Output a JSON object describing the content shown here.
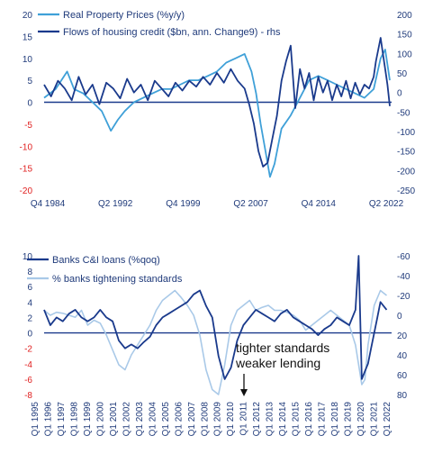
{
  "colors": {
    "navy": "#1a3a8c",
    "lightblue": "#3fa0d8",
    "paleblue": "#a9c9e8",
    "axis_text": "#1f3a7a",
    "negative": "#e02020"
  },
  "chart_data": [
    {
      "type": "line",
      "title": "",
      "legend_position": "top-left",
      "grid": false,
      "x_ticks": [
        "Q4 1984",
        "Q2 1992",
        "Q4 1999",
        "Q2 2007",
        "Q4 2014",
        "Q2 2022"
      ],
      "x_range": [
        1984.75,
        2022.25
      ],
      "y_left": {
        "range": [
          -20,
          20
        ],
        "ticks": [
          20,
          15,
          10,
          5,
          0,
          -5,
          -10,
          -15,
          -20
        ]
      },
      "y_right": {
        "range": [
          -250,
          200
        ],
        "ticks": [
          200,
          150,
          100,
          50,
          0,
          -50,
          -100,
          -150,
          -200,
          -250
        ]
      },
      "series": [
        {
          "name": "Real Property Prices (%y/y)",
          "axis": "left",
          "color": "#3fa0d8",
          "x": [
            1984.75,
            1986,
            1987.25,
            1988,
            1989,
            1990,
            1991,
            1992,
            1992.75,
            1993.5,
            1994.5,
            1995.5,
            1996.5,
            1997.5,
            1998.5,
            1999.5,
            2000.5,
            2001.5,
            2002.5,
            2003.5,
            2004.5,
            2005.5,
            2006.5,
            2007.25,
            2007.75,
            2008.25,
            2008.75,
            2009.25,
            2009.75,
            2010.5,
            2011.5,
            2012.5,
            2013.5,
            2014.5,
            2015.5,
            2016.5,
            2017.5,
            2018.5,
            2019.5,
            2020.5,
            2021.25,
            2021.75,
            2022.25
          ],
          "y": [
            1,
            3,
            7,
            3,
            2,
            0,
            -2,
            -6.5,
            -4,
            -2,
            0,
            1,
            2,
            3,
            3,
            4,
            5,
            5,
            6,
            7,
            9,
            10,
            11,
            7,
            2,
            -5,
            -11,
            -17,
            -14,
            -6,
            -3,
            1,
            5,
            6,
            5,
            4,
            3,
            2,
            1,
            3,
            10,
            12,
            5
          ]
        },
        {
          "name": "Flows of housing credit ($bn, ann. Change9) - rhs",
          "axis": "right",
          "color": "#1a3a8c",
          "x": [
            1984.75,
            1985.5,
            1986.25,
            1987,
            1987.75,
            1988.5,
            1989.25,
            1990,
            1990.75,
            1991.5,
            1992.25,
            1993,
            1993.75,
            1994.5,
            1995.25,
            1996,
            1996.75,
            1997.5,
            1998.25,
            1999,
            1999.75,
            2000.5,
            2001.25,
            2002,
            2002.75,
            2003.5,
            2004.25,
            2005,
            2005.75,
            2006.5,
            2007,
            2007.5,
            2008,
            2008.5,
            2009,
            2009.5,
            2010,
            2010.5,
            2011,
            2011.5,
            2012,
            2012.5,
            2013,
            2013.5,
            2014,
            2014.5,
            2015,
            2015.5,
            2016,
            2016.5,
            2017,
            2017.5,
            2018,
            2018.5,
            2019,
            2019.5,
            2020,
            2020.5,
            2020.75,
            2021,
            2021.25,
            2021.5,
            2021.75,
            2022,
            2022.25
          ],
          "y": [
            20,
            -10,
            30,
            10,
            -20,
            40,
            -5,
            20,
            -30,
            25,
            10,
            -15,
            35,
            0,
            20,
            -20,
            30,
            10,
            -10,
            25,
            5,
            30,
            15,
            40,
            20,
            50,
            25,
            60,
            30,
            10,
            -30,
            -80,
            -150,
            -190,
            -180,
            -120,
            -60,
            30,
            80,
            120,
            -40,
            60,
            10,
            50,
            -20,
            40,
            0,
            30,
            -20,
            20,
            -10,
            30,
            -15,
            25,
            -5,
            20,
            10,
            40,
            80,
            110,
            140,
            100,
            60,
            20,
            -35
          ]
        }
      ]
    },
    {
      "type": "line",
      "title": "",
      "legend_position": "top-left",
      "grid": false,
      "x_ticks": [
        "Q1 1995",
        "Q1 1996",
        "Q1 1997",
        "Q1 1998",
        "Q1 1999",
        "Q1 2000",
        "Q1 2001",
        "Q1 2002",
        "Q1 2003",
        "Q1 2004",
        "Q1 2005",
        "Q1 2006",
        "Q1 2007",
        "Q1 2008",
        "Q1 2009",
        "Q1 2010",
        "Q1 2011",
        "Q1 2012",
        "Q1 2013",
        "Q1 2014",
        "Q1 2015",
        "Q1 2016",
        "Q1 2017",
        "Q1 2018",
        "Q1 2019",
        "Q1 2020",
        "Q1 2021",
        "Q1 2022"
      ],
      "x_range": [
        1995,
        2022.75
      ],
      "y_left": {
        "range": [
          -8,
          10
        ],
        "ticks": [
          10,
          8,
          6,
          4,
          2,
          0,
          -2,
          -4,
          -6,
          -8
        ]
      },
      "y_right": {
        "range": [
          80,
          -60
        ],
        "ticks": [
          -60,
          -40,
          -20,
          0,
          20,
          40,
          60,
          80
        ],
        "inverted": true
      },
      "annotation": {
        "lines": [
          "tighter standards",
          "weaker lending"
        ],
        "arrow": "down"
      },
      "series": [
        {
          "name": "Banks C&I loans (%qoq)",
          "axis": "left",
          "color": "#1a3a8c",
          "x": [
            1995,
            1995.5,
            1996,
            1996.5,
            1997,
            1997.5,
            1998,
            1998.5,
            1999,
            1999.5,
            2000,
            2000.5,
            2001,
            2001.5,
            2002,
            2002.5,
            2003,
            2003.5,
            2004,
            2004.5,
            2005,
            2005.5,
            2006,
            2006.5,
            2007,
            2007.5,
            2008,
            2008.5,
            2009,
            2009.5,
            2010,
            2010.5,
            2011,
            2011.5,
            2012,
            2012.5,
            2013,
            2013.5,
            2014,
            2014.5,
            2015,
            2015.5,
            2016,
            2016.5,
            2017,
            2017.5,
            2018,
            2018.5,
            2019,
            2019.5,
            2020,
            2020.25,
            2020.5,
            2020.75,
            2021,
            2021.25,
            2021.5,
            2021.75,
            2022,
            2022.5
          ],
          "y": [
            3,
            1,
            2,
            1.5,
            2.5,
            3,
            2,
            1.5,
            2,
            3,
            2,
            1.5,
            -1,
            -2,
            -1.5,
            -2,
            -1.2,
            -0.5,
            1,
            2,
            2.5,
            3,
            3.5,
            4,
            5,
            5.5,
            3.5,
            2,
            -3,
            -6,
            -4.5,
            -1,
            1,
            2,
            3,
            2.5,
            2,
            1.5,
            2.5,
            3,
            2,
            1.5,
            1,
            0.5,
            -0.3,
            0.5,
            1,
            2,
            1.5,
            1,
            3,
            10,
            -6,
            -5,
            -4,
            -2,
            0,
            2,
            4,
            3
          ]
        },
        {
          "name": "% banks tightening standards",
          "axis": "right",
          "color": "#a9c9e8",
          "x": [
            1995,
            1995.5,
            1996,
            1996.5,
            1997,
            1997.5,
            1998,
            1998.5,
            1999,
            1999.5,
            2000,
            2000.5,
            2001,
            2001.5,
            2002,
            2002.5,
            2003,
            2003.5,
            2004,
            2004.5,
            2005,
            2005.5,
            2006,
            2006.5,
            2007,
            2007.5,
            2008,
            2008.5,
            2009,
            2009.5,
            2010,
            2010.5,
            2011,
            2011.5,
            2012,
            2012.5,
            2013,
            2013.5,
            2014,
            2014.5,
            2015,
            2015.5,
            2016,
            2016.5,
            2017,
            2017.5,
            2018,
            2018.5,
            2019,
            2019.5,
            2020,
            2020.5,
            2020.75,
            2021,
            2021.5,
            2022,
            2022.5
          ],
          "y": [
            -5,
            0,
            -3,
            -2,
            0,
            2,
            -5,
            10,
            5,
            8,
            20,
            35,
            50,
            55,
            40,
            30,
            20,
            10,
            -5,
            -15,
            -20,
            -25,
            -18,
            -10,
            0,
            20,
            55,
            75,
            80,
            50,
            10,
            -5,
            -10,
            -15,
            -5,
            -8,
            -10,
            -5,
            -5,
            -3,
            0,
            5,
            15,
            10,
            5,
            0,
            -5,
            0,
            5,
            10,
            30,
            70,
            65,
            30,
            -10,
            -25,
            -20
          ]
        }
      ]
    }
  ]
}
